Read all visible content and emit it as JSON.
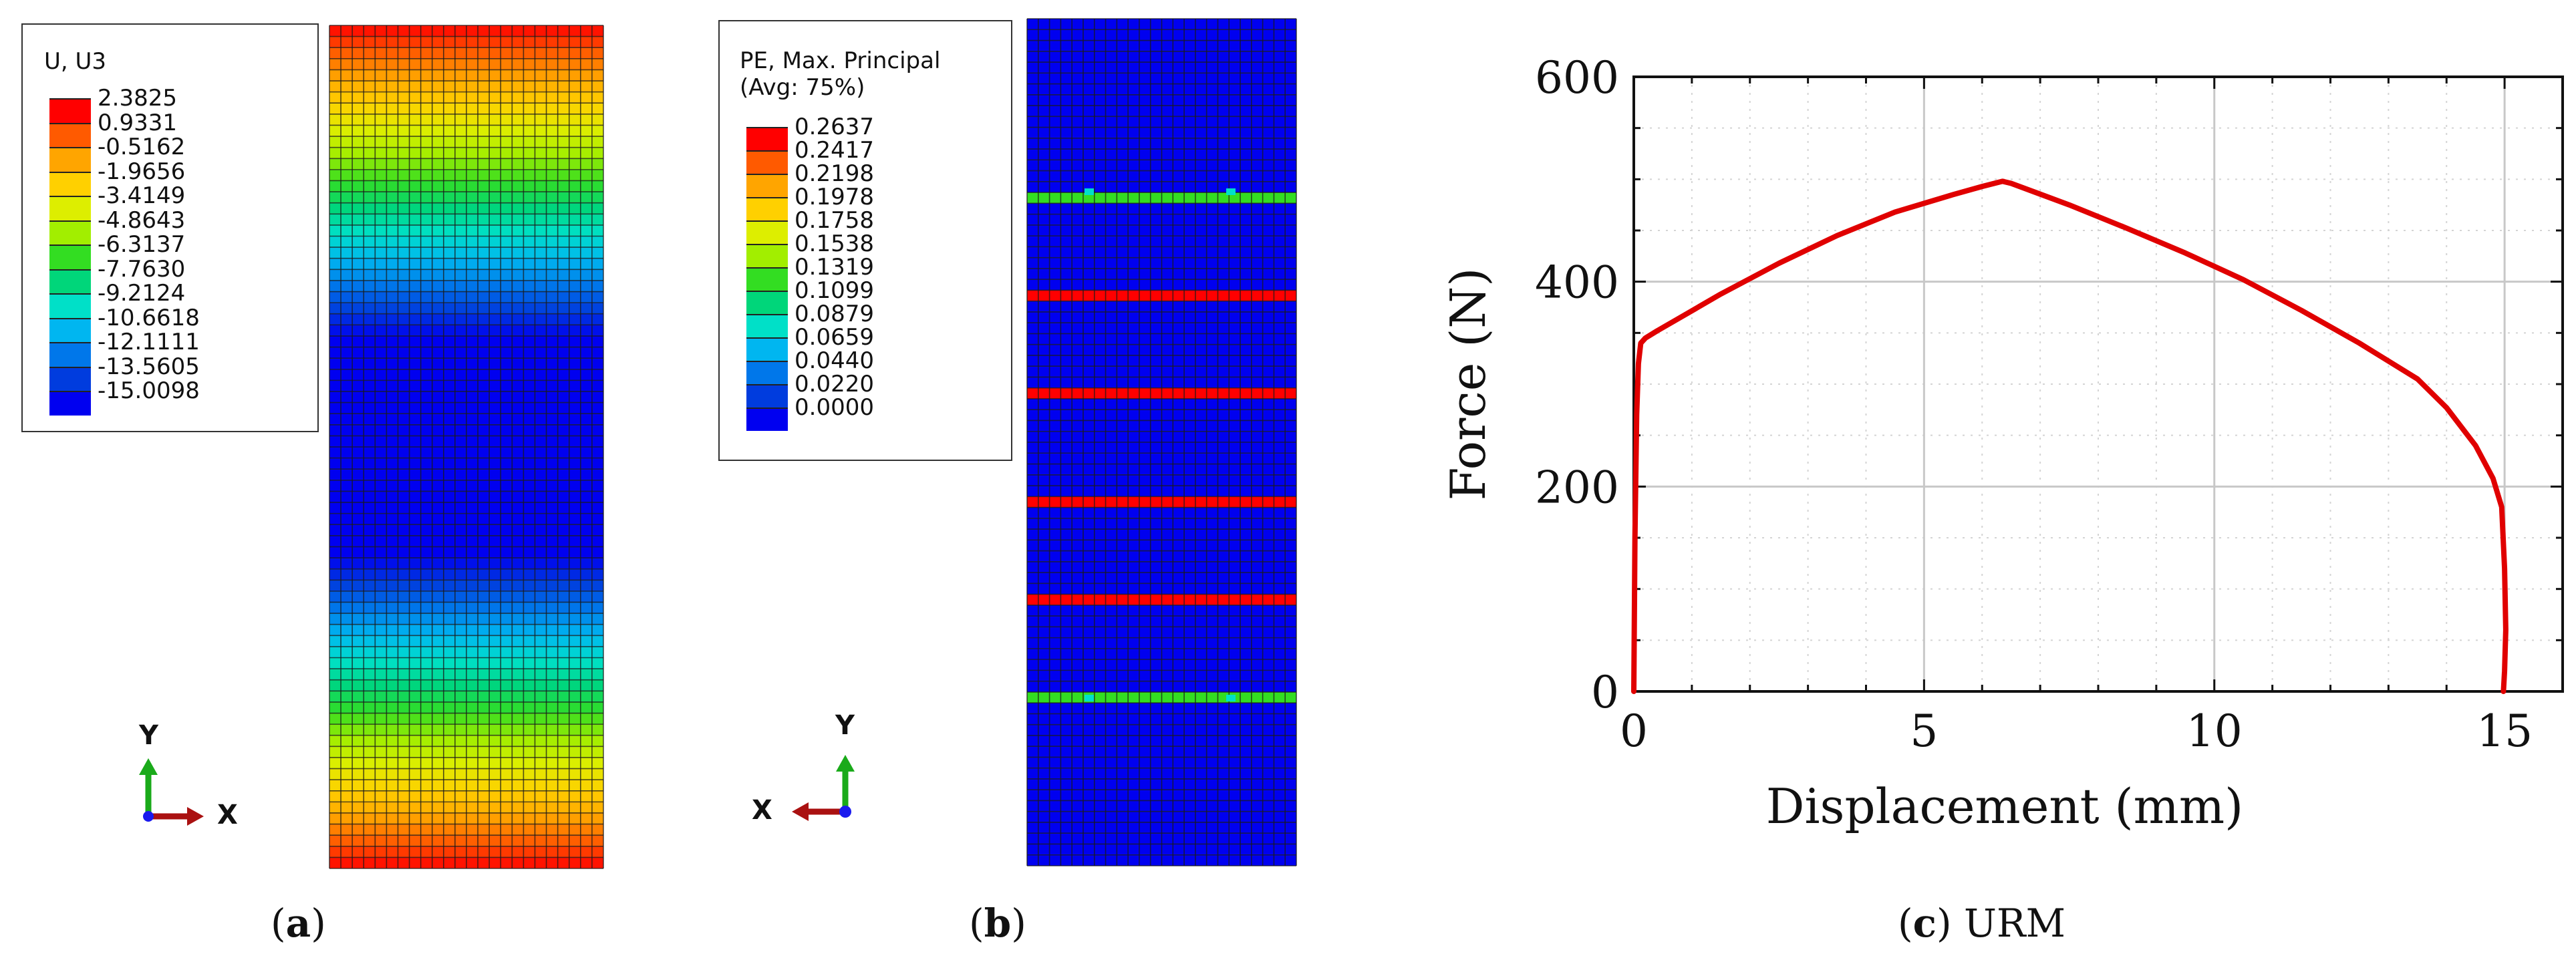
{
  "panel_a": {
    "caption_letter": "a",
    "legend": {
      "title": "U, U3",
      "values": [
        "2.3825",
        "0.9331",
        "-0.5162",
        "-1.9656",
        "-3.4149",
        "-4.8643",
        "-6.3137",
        "-7.7630",
        "-9.2124",
        "-10.6618",
        "-12.1111",
        "-13.5605",
        "-15.0098"
      ],
      "colors": [
        "#ff0000",
        "#ff5a00",
        "#ffa500",
        "#ffd000",
        "#ddee00",
        "#a2ee00",
        "#33dd22",
        "#00d67a",
        "#00e0c8",
        "#00b6f0",
        "#0077ea",
        "#003cde",
        "#0000f0"
      ]
    },
    "triad": {
      "vertical": "Y",
      "horizontal": "X"
    }
  },
  "panel_b": {
    "caption_letter": "b",
    "legend": {
      "title_line1": "PE, Max. Principal",
      "title_line2": "(Avg: 75%)",
      "values": [
        "0.2637",
        "0.2417",
        "0.2198",
        "0.1978",
        "0.1758",
        "0.1538",
        "0.1319",
        "0.1099",
        "0.0879",
        "0.0659",
        "0.0440",
        "0.0220",
        "0.0000"
      ],
      "colors": [
        "#ff0000",
        "#ff5a00",
        "#ffa500",
        "#ffd000",
        "#ddee00",
        "#a2ee00",
        "#33dd22",
        "#00d67a",
        "#00e0c8",
        "#00b6f0",
        "#0077ea",
        "#003cde",
        "#0000f0"
      ]
    },
    "triad": {
      "vertical": "Y",
      "horizontal": "X"
    }
  },
  "panel_c": {
    "caption_letter": "c",
    "caption_text": "URM"
  },
  "chart_data": {
    "type": "line",
    "title": "",
    "xlabel": "Displacement (mm)",
    "ylabel": "Force (N)",
    "xlim": [
      0,
      16
    ],
    "ylim": [
      0,
      600
    ],
    "xticks": [
      0,
      5,
      10,
      15
    ],
    "yticks": [
      0,
      200,
      400,
      600
    ],
    "grid": true,
    "series": [
      {
        "name": "URM",
        "color": "#e00000",
        "x": [
          0,
          0.02,
          0.05,
          0.08,
          0.12,
          0.2,
          0.4,
          0.8,
          1.5,
          2.5,
          3.5,
          4.5,
          5.5,
          6.0,
          6.35,
          6.5,
          7.5,
          8.5,
          9.5,
          10.5,
          11.5,
          12.5,
          13.5,
          14.0,
          14.5,
          14.8,
          14.95,
          15.0,
          15.02,
          15.0,
          14.98
        ],
        "y": [
          0,
          150,
          270,
          320,
          340,
          345,
          352,
          365,
          388,
          418,
          445,
          468,
          485,
          493,
          498,
          496,
          475,
          452,
          428,
          402,
          372,
          340,
          305,
          277,
          240,
          208,
          180,
          120,
          60,
          20,
          0
        ]
      }
    ]
  }
}
